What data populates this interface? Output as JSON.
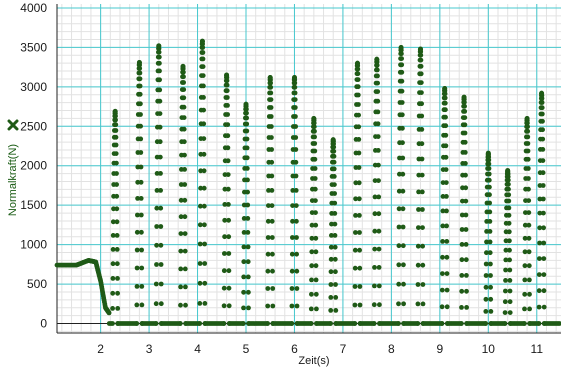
{
  "chart_data": {
    "type": "scatter",
    "xlabel": "Zeit(s)",
    "ylabel": "Normalkraft(N)",
    "xlim": [
      1.1,
      11.5
    ],
    "ylim": [
      -120,
      4050
    ],
    "x_ticks": [
      2,
      3,
      4,
      5,
      6,
      7,
      8,
      9,
      10,
      11
    ],
    "y_ticks": [
      0,
      500,
      1000,
      1500,
      2000,
      2500,
      3000,
      3500,
      4000
    ],
    "grid": true,
    "series": [
      {
        "color": "#1f5a16",
        "marker": "circle",
        "legend_marker": "x",
        "baseline": {
          "x": [
            1.1,
            1.5,
            1.75,
            1.9,
            2.0,
            2.1,
            2.18
          ],
          "y": [
            740,
            740,
            800,
            780,
            540,
            200,
            130
          ]
        },
        "peaks": [
          {
            "x": 2.3,
            "y": 2690
          },
          {
            "x": 2.8,
            "y": 3310
          },
          {
            "x": 3.2,
            "y": 3520
          },
          {
            "x": 3.7,
            "y": 3260
          },
          {
            "x": 4.1,
            "y": 3580
          },
          {
            "x": 4.6,
            "y": 3150
          },
          {
            "x": 5.0,
            "y": 2780
          },
          {
            "x": 5.5,
            "y": 3120
          },
          {
            "x": 6.0,
            "y": 3120
          },
          {
            "x": 6.4,
            "y": 2600
          },
          {
            "x": 6.8,
            "y": 2330
          },
          {
            "x": 7.3,
            "y": 3300
          },
          {
            "x": 7.7,
            "y": 3350
          },
          {
            "x": 8.2,
            "y": 3500
          },
          {
            "x": 8.6,
            "y": 3480
          },
          {
            "x": 9.1,
            "y": 2980
          },
          {
            "x": 9.5,
            "y": 2870
          },
          {
            "x": 10.0,
            "y": 2160
          },
          {
            "x": 10.4,
            "y": 1940
          },
          {
            "x": 10.8,
            "y": 2600
          },
          {
            "x": 11.1,
            "y": 2920
          }
        ],
        "floor_y": 0
      }
    ]
  }
}
